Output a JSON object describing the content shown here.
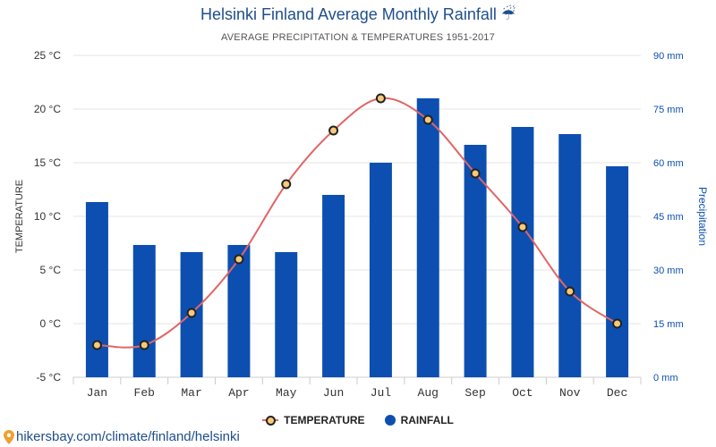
{
  "header": {
    "title": "Helsinki Finland Average Monthly Rainfall",
    "umbrella_icon": "☔",
    "subtitle": "AVERAGE PRECIPITATION & TEMPERATURES 1951-2017"
  },
  "legend": {
    "temperature_label": "TEMPERATURE",
    "rainfall_label": "RAINFALL"
  },
  "footer": {
    "source": "hikersbay.com/climate/finland/helsinki"
  },
  "colors": {
    "bar": "#0d4fb0",
    "line": "#e06666",
    "marker_fill": "#f7c97a",
    "marker_stroke": "#222222",
    "right_axis_text": "#0d4fb0"
  },
  "chart_data": {
    "type": "bar+line",
    "title": "Helsinki Finland Average Monthly Rainfall",
    "categories": [
      "Jan",
      "Feb",
      "Mar",
      "Apr",
      "May",
      "Jun",
      "Jul",
      "Aug",
      "Sep",
      "Oct",
      "Nov",
      "Dec"
    ],
    "series": [
      {
        "name": "RAINFALL",
        "type": "bar",
        "axis": "right",
        "unit": "mm",
        "values": [
          49,
          37,
          35,
          37,
          35,
          51,
          60,
          78,
          65,
          70,
          68,
          59
        ]
      },
      {
        "name": "TEMPERATURE",
        "type": "line",
        "axis": "left",
        "unit": "°C",
        "values": [
          -2,
          -2,
          1,
          6,
          13,
          18,
          21,
          19,
          14,
          9,
          3,
          0
        ]
      }
    ],
    "left_axis": {
      "label": "TEMPERATURE",
      "ylim": [
        -5,
        25
      ],
      "ticks": [
        -5,
        0,
        5,
        10,
        15,
        20,
        25
      ],
      "tick_labels": [
        "-5 °C",
        "0 °C",
        "5 °C",
        "10 °C",
        "15 °C",
        "20 °C",
        "25 °C"
      ]
    },
    "right_axis": {
      "label": "Precipitation",
      "ylim": [
        0,
        90
      ],
      "ticks": [
        0,
        15,
        30,
        45,
        60,
        75,
        90
      ],
      "tick_labels": [
        "0 mm",
        "15 mm",
        "30 mm",
        "45 mm",
        "60 mm",
        "75 mm",
        "90 mm"
      ]
    },
    "grid": true,
    "legend_position": "bottom-center"
  }
}
